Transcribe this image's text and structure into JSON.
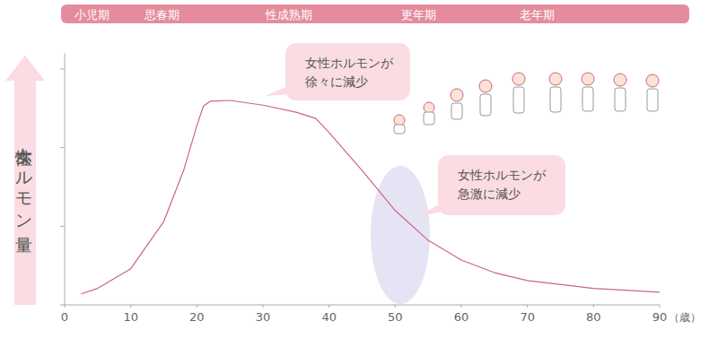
{
  "chart_data": {
    "type": "line",
    "y_label": "女性ホルモン量",
    "x_label": "（歳）",
    "stages": [
      "小児期",
      "思春期",
      "性成熟期",
      "更年期",
      "老年期"
    ],
    "annotations": [
      [
        "女性ホルモンが",
        "徐々に減少"
      ],
      [
        "女性ホルモンが",
        "急激に減少"
      ]
    ],
    "x": [
      2.5,
      5,
      10,
      15,
      18,
      20,
      21,
      22,
      25,
      30,
      35,
      38,
      40,
      45,
      50,
      55,
      60,
      65,
      70,
      80,
      90
    ],
    "series": [
      {
        "name": "女性ホルモン量",
        "color": "#c9667f",
        "values": [
          0.14,
          0.21,
          0.46,
          1.06,
          1.71,
          2.28,
          2.53,
          2.59,
          2.6,
          2.54,
          2.45,
          2.37,
          2.19,
          1.71,
          1.2,
          0.82,
          0.57,
          0.41,
          0.31,
          0.21,
          0.16
        ]
      }
    ],
    "xlim": [
      0,
      90
    ],
    "xticks": [
      0,
      10,
      20,
      30,
      40,
      50,
      60,
      70,
      80,
      90
    ],
    "ylim": [
      0,
      3.2
    ],
    "yticks": [
      0,
      1,
      2,
      3
    ],
    "tick_labels": "x",
    "grid": false
  }
}
